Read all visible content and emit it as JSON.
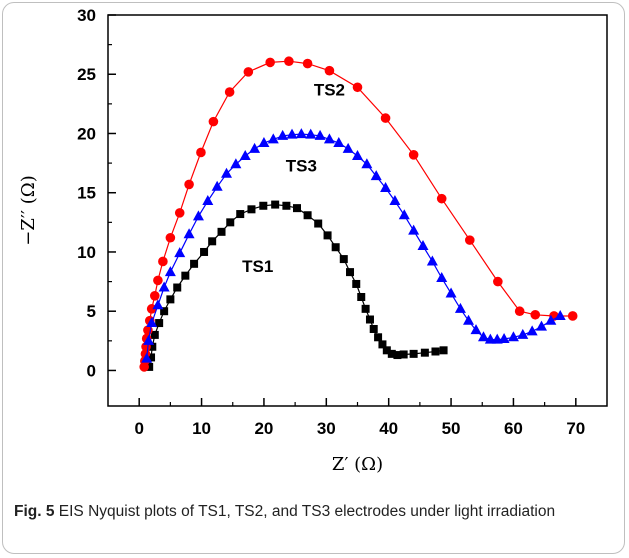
{
  "chart_data": {
    "type": "scatter",
    "xlabel": "Z′ (Ω)",
    "ylabel": "−Z′′ (Ω)",
    "xlim": [
      -5,
      75
    ],
    "ylim": [
      -3,
      30
    ],
    "x_ticks": [
      0,
      10,
      20,
      30,
      40,
      50,
      60,
      70
    ],
    "y_ticks": [
      0,
      5,
      10,
      15,
      20,
      25,
      30
    ],
    "grid": false,
    "legend": "none",
    "series": [
      {
        "name": "TS1",
        "color": "#000000",
        "marker": "square",
        "label_pos": [
          19,
          8.3
        ],
        "points": [
          [
            1.6,
            0.3
          ],
          [
            1.9,
            1.1
          ],
          [
            2.1,
            2.0
          ],
          [
            2.5,
            3.0
          ],
          [
            3.2,
            4.0
          ],
          [
            4.0,
            5.0
          ],
          [
            5.0,
            6.0
          ],
          [
            6.1,
            7.0
          ],
          [
            7.4,
            8.0
          ],
          [
            8.8,
            9.0
          ],
          [
            10.4,
            10.0
          ],
          [
            11.7,
            10.9
          ],
          [
            13.2,
            11.7
          ],
          [
            14.6,
            12.5
          ],
          [
            16.2,
            13.2
          ],
          [
            18.0,
            13.6
          ],
          [
            19.9,
            13.9
          ],
          [
            21.8,
            14.0
          ],
          [
            23.6,
            13.9
          ],
          [
            25.3,
            13.7
          ],
          [
            27.0,
            13.1
          ],
          [
            28.7,
            12.4
          ],
          [
            30.2,
            11.4
          ],
          [
            31.5,
            10.4
          ],
          [
            32.8,
            9.4
          ],
          [
            33.8,
            8.3
          ],
          [
            34.8,
            7.3
          ],
          [
            35.6,
            6.2
          ],
          [
            36.3,
            5.2
          ],
          [
            37.0,
            4.3
          ],
          [
            37.6,
            3.5
          ],
          [
            38.3,
            2.8
          ],
          [
            39.0,
            2.2
          ],
          [
            39.7,
            1.7
          ],
          [
            40.5,
            1.4
          ],
          [
            41.4,
            1.3
          ],
          [
            42.4,
            1.35
          ],
          [
            44.0,
            1.4
          ],
          [
            45.8,
            1.5
          ],
          [
            47.5,
            1.6
          ],
          [
            48.8,
            1.7
          ]
        ]
      },
      {
        "name": "TS2",
        "color": "#ff0000",
        "marker": "circle",
        "label_pos": [
          30.5,
          23.2
        ],
        "points": [
          [
            0.8,
            0.3
          ],
          [
            0.9,
            0.8
          ],
          [
            1.0,
            1.4
          ],
          [
            1.1,
            2.0
          ],
          [
            1.2,
            2.7
          ],
          [
            1.4,
            3.4
          ],
          [
            1.7,
            4.2
          ],
          [
            2.0,
            5.2
          ],
          [
            2.5,
            6.3
          ],
          [
            3.0,
            7.6
          ],
          [
            3.8,
            9.2
          ],
          [
            5.0,
            11.2
          ],
          [
            6.5,
            13.3
          ],
          [
            8.0,
            15.7
          ],
          [
            9.9,
            18.4
          ],
          [
            11.9,
            21.0
          ],
          [
            14.5,
            23.5
          ],
          [
            17.5,
            25.2
          ],
          [
            21.0,
            26.0
          ],
          [
            24.0,
            26.1
          ],
          [
            27.0,
            25.9
          ],
          [
            30.5,
            25.3
          ],
          [
            35.0,
            23.9
          ],
          [
            39.5,
            21.3
          ],
          [
            44.0,
            18.2
          ],
          [
            48.5,
            14.5
          ],
          [
            53.0,
            11.0
          ],
          [
            57.5,
            7.5
          ],
          [
            61.0,
            5.0
          ],
          [
            63.5,
            4.7
          ],
          [
            66.5,
            4.6
          ],
          [
            69.5,
            4.6
          ]
        ]
      },
      {
        "name": "TS3",
        "color": "#0000ff",
        "marker": "triangle",
        "label_pos": [
          26,
          16.8
        ],
        "points": [
          [
            1.2,
            1.0
          ],
          [
            1.5,
            2.5
          ],
          [
            2.0,
            4.0
          ],
          [
            3.0,
            5.5
          ],
          [
            4.0,
            7.0
          ],
          [
            5.0,
            8.3
          ],
          [
            6.5,
            9.9
          ],
          [
            8.0,
            11.5
          ],
          [
            9.5,
            13.0
          ],
          [
            11.0,
            14.3
          ],
          [
            12.5,
            15.5
          ],
          [
            14.0,
            16.6
          ],
          [
            15.5,
            17.4
          ],
          [
            17.0,
            18.1
          ],
          [
            18.5,
            18.7
          ],
          [
            20.0,
            19.2
          ],
          [
            21.5,
            19.5
          ],
          [
            23.0,
            19.8
          ],
          [
            24.5,
            19.9
          ],
          [
            26.0,
            19.95
          ],
          [
            27.5,
            19.9
          ],
          [
            29.0,
            19.8
          ],
          [
            30.5,
            19.5
          ],
          [
            32.0,
            19.2
          ],
          [
            33.5,
            18.7
          ],
          [
            35.0,
            18.1
          ],
          [
            36.5,
            17.4
          ],
          [
            38.0,
            16.4
          ],
          [
            39.5,
            15.4
          ],
          [
            41.0,
            14.3
          ],
          [
            42.5,
            13.1
          ],
          [
            44.0,
            11.8
          ],
          [
            45.5,
            10.5
          ],
          [
            47.0,
            9.2
          ],
          [
            48.5,
            7.8
          ],
          [
            50.0,
            6.5
          ],
          [
            51.5,
            5.2
          ],
          [
            52.8,
            4.2
          ],
          [
            54.0,
            3.4
          ],
          [
            55.2,
            2.8
          ],
          [
            56.3,
            2.6
          ],
          [
            57.4,
            2.6
          ],
          [
            58.5,
            2.65
          ],
          [
            60.0,
            2.8
          ],
          [
            61.5,
            3.0
          ],
          [
            63.0,
            3.3
          ],
          [
            64.5,
            3.7
          ],
          [
            66.0,
            4.2
          ],
          [
            67.5,
            4.6
          ]
        ]
      }
    ]
  },
  "caption": {
    "fig_label": "Fig. 5",
    "text": " EIS Nyquist plots of TS1, TS2, and TS3 electrodes under light irradiation"
  }
}
